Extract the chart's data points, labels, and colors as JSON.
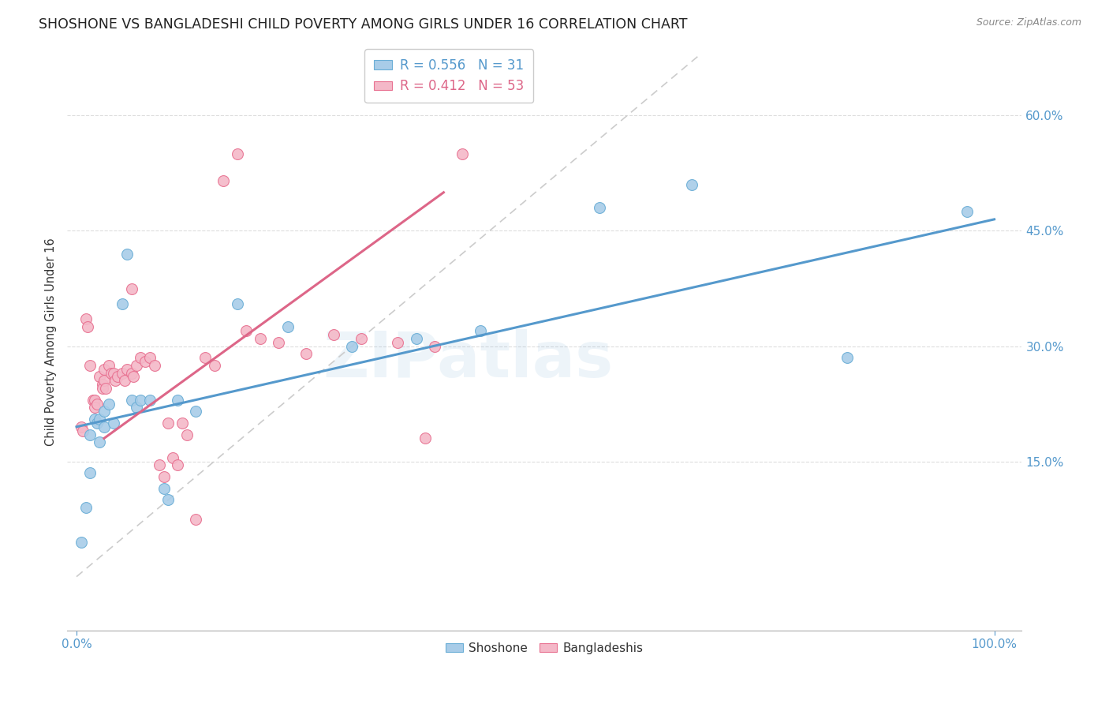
{
  "title": "SHOSHONE VS BANGLADESHI CHILD POVERTY AMONG GIRLS UNDER 16 CORRELATION CHART",
  "source": "Source: ZipAtlas.com",
  "ylabel": "Child Poverty Among Girls Under 16",
  "ytick_labels": [
    "15.0%",
    "30.0%",
    "45.0%",
    "60.0%"
  ],
  "ytick_values": [
    0.15,
    0.3,
    0.45,
    0.6
  ],
  "xtick_labels": [
    "0.0%",
    "100.0%"
  ],
  "xtick_values": [
    0.0,
    1.0
  ],
  "xlim": [
    -0.01,
    1.03
  ],
  "ylim": [
    -0.07,
    0.68
  ],
  "watermark": "ZIPatlas",
  "legend_blue_r": "0.556",
  "legend_blue_n": "31",
  "legend_pink_r": "0.412",
  "legend_pink_n": "53",
  "shoshone_color": "#a8cce8",
  "bangladeshi_color": "#f4b8c8",
  "shoshone_edge": "#6aaed6",
  "bangladeshi_edge": "#e87090",
  "trend_blue": "#5599cc",
  "trend_pink": "#dd6688",
  "diag_color": "#cccccc",
  "marker_size": 100,
  "blue_trend_x0": 0.0,
  "blue_trend_y0": 0.195,
  "blue_trend_x1": 1.0,
  "blue_trend_y1": 0.465,
  "pink_trend_x0": 0.03,
  "pink_trend_y0": 0.18,
  "pink_trend_x1": 0.4,
  "pink_trend_y1": 0.5,
  "shoshone_x": [
    0.005,
    0.01,
    0.015,
    0.015,
    0.02,
    0.022,
    0.025,
    0.025,
    0.03,
    0.03,
    0.035,
    0.04,
    0.05,
    0.055,
    0.06,
    0.065,
    0.07,
    0.08,
    0.095,
    0.1,
    0.11,
    0.13,
    0.175,
    0.23,
    0.3,
    0.37,
    0.44,
    0.57,
    0.67,
    0.84,
    0.97
  ],
  "shoshone_y": [
    0.045,
    0.09,
    0.185,
    0.135,
    0.205,
    0.2,
    0.175,
    0.205,
    0.215,
    0.195,
    0.225,
    0.2,
    0.355,
    0.42,
    0.23,
    0.22,
    0.23,
    0.23,
    0.115,
    0.1,
    0.23,
    0.215,
    0.355,
    0.325,
    0.3,
    0.31,
    0.32,
    0.48,
    0.51,
    0.285,
    0.475
  ],
  "bangladeshi_x": [
    0.005,
    0.007,
    0.01,
    0.012,
    0.015,
    0.018,
    0.02,
    0.02,
    0.022,
    0.025,
    0.028,
    0.028,
    0.03,
    0.03,
    0.032,
    0.035,
    0.038,
    0.04,
    0.042,
    0.045,
    0.05,
    0.052,
    0.055,
    0.06,
    0.062,
    0.065,
    0.07,
    0.075,
    0.08,
    0.085,
    0.09,
    0.095,
    0.1,
    0.105,
    0.11,
    0.115,
    0.12,
    0.13,
    0.14,
    0.15,
    0.16,
    0.175,
    0.185,
    0.2,
    0.22,
    0.25,
    0.28,
    0.31,
    0.35,
    0.39,
    0.42,
    0.38,
    0.06
  ],
  "bangladeshi_y": [
    0.195,
    0.19,
    0.335,
    0.325,
    0.275,
    0.23,
    0.23,
    0.22,
    0.225,
    0.26,
    0.25,
    0.245,
    0.27,
    0.255,
    0.245,
    0.275,
    0.265,
    0.265,
    0.255,
    0.26,
    0.265,
    0.255,
    0.27,
    0.265,
    0.26,
    0.275,
    0.285,
    0.28,
    0.285,
    0.275,
    0.145,
    0.13,
    0.2,
    0.155,
    0.145,
    0.2,
    0.185,
    0.075,
    0.285,
    0.275,
    0.515,
    0.55,
    0.32,
    0.31,
    0.305,
    0.29,
    0.315,
    0.31,
    0.305,
    0.3,
    0.55,
    0.18,
    0.375
  ]
}
